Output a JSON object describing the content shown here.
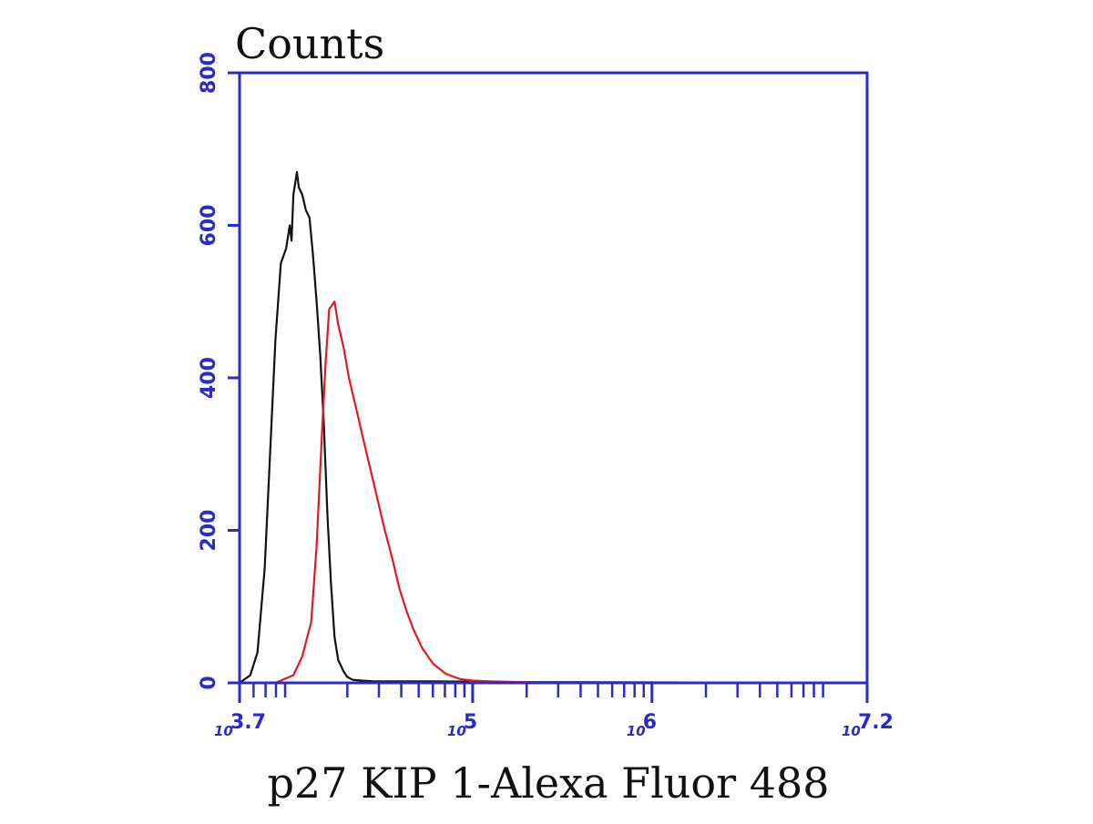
{
  "chart_data": {
    "type": "line",
    "title": "",
    "ylabel": "Counts",
    "xlabel": "p27 KIP 1-Alexa Fluor 488",
    "xscale": "log",
    "xlim": [
      3.7,
      7.2
    ],
    "ylim": [
      0,
      800
    ],
    "yticks": [
      {
        "value": 0,
        "label": "0"
      },
      {
        "value": 200,
        "label": "200"
      },
      {
        "value": 400,
        "label": "400"
      },
      {
        "value": 600,
        "label": "600"
      },
      {
        "value": 800,
        "label": "800"
      }
    ],
    "xticks": [
      {
        "value": 3.7,
        "base": "10",
        "exp": "3.7"
      },
      {
        "value": 5,
        "base": "10",
        "exp": "5"
      },
      {
        "value": 6,
        "base": "10",
        "exp": "6"
      },
      {
        "value": 7.2,
        "base": "10",
        "exp": "7.2"
      }
    ],
    "grid": false,
    "legend": "none",
    "colors": {
      "axes": "#2b2bcc",
      "control": "#111111",
      "sample": "#e31a1c"
    },
    "series": [
      {
        "color": "#111111",
        "x": [
          3.7,
          3.76,
          3.8,
          3.84,
          3.87,
          3.9,
          3.93,
          3.96,
          3.98,
          3.99,
          4.0,
          4.02,
          4.03,
          4.05,
          4.07,
          4.09,
          4.11,
          4.13,
          4.15,
          4.17,
          4.19,
          4.21,
          4.23,
          4.25,
          4.28,
          4.3,
          4.33,
          4.38,
          4.45,
          4.6,
          4.8,
          5.2,
          5.5,
          7.2
        ],
        "y": [
          0,
          10,
          40,
          150,
          300,
          450,
          550,
          570,
          600,
          580,
          640,
          670,
          650,
          640,
          620,
          610,
          560,
          500,
          430,
          340,
          220,
          130,
          60,
          30,
          15,
          8,
          4,
          3,
          2,
          2,
          2,
          1,
          1,
          0
        ]
      },
      {
        "color": "#e31a1c",
        "x": [
          3.7,
          3.9,
          4.0,
          4.05,
          4.1,
          4.13,
          4.16,
          4.18,
          4.2,
          4.23,
          4.25,
          4.28,
          4.31,
          4.35,
          4.39,
          4.43,
          4.47,
          4.51,
          4.55,
          4.59,
          4.63,
          4.67,
          4.72,
          4.78,
          4.85,
          4.93,
          5.0,
          5.1,
          5.3,
          5.5,
          7.2
        ],
        "y": [
          0,
          0,
          10,
          35,
          80,
          180,
          330,
          420,
          490,
          500,
          470,
          440,
          400,
          360,
          320,
          280,
          240,
          200,
          165,
          125,
          95,
          70,
          45,
          25,
          12,
          5,
          3,
          2,
          1,
          0,
          0
        ]
      }
    ]
  }
}
